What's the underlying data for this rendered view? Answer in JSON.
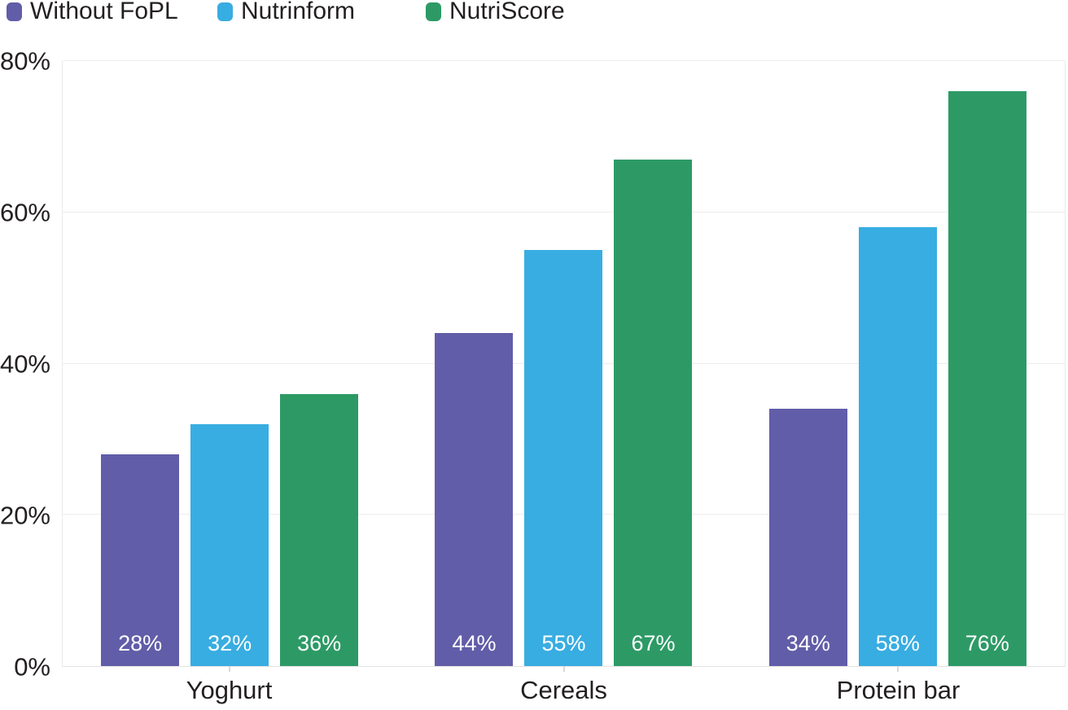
{
  "chart_data": {
    "type": "bar",
    "title": "",
    "categories": [
      "Yoghurt",
      "Cereals",
      "Protein bar"
    ],
    "series": [
      {
        "name": "Without FoPL",
        "color": "#615DA8",
        "values": [
          28,
          44,
          34
        ],
        "labels": [
          "28%",
          "44%",
          "34%"
        ]
      },
      {
        "name": "Nutrinform",
        "color": "#38ADE1",
        "values": [
          32,
          55,
          58
        ],
        "labels": [
          "32%",
          "55%",
          "58%"
        ]
      },
      {
        "name": "NutriScore",
        "color": "#2D9A66",
        "values": [
          36,
          67,
          76
        ],
        "labels": [
          "36%",
          "67%",
          "76%"
        ]
      }
    ],
    "xlabel": "",
    "ylabel": "",
    "ylim": [
      0,
      80
    ],
    "yticks": [
      0,
      20,
      40,
      60,
      80
    ],
    "ytick_labels": [
      "0%",
      "20%",
      "40%",
      "60%",
      "80%"
    ],
    "grid": true,
    "legend_position": "top-left",
    "value_label_position": "inside-bottom"
  },
  "colors": {
    "background": "#FFFFFF",
    "text": "#231F20",
    "value_label_text": "#FFFFFF",
    "gridline": "#EDEDED",
    "axis_border": "#E2E2E2",
    "tick": "#D9D9D9"
  }
}
